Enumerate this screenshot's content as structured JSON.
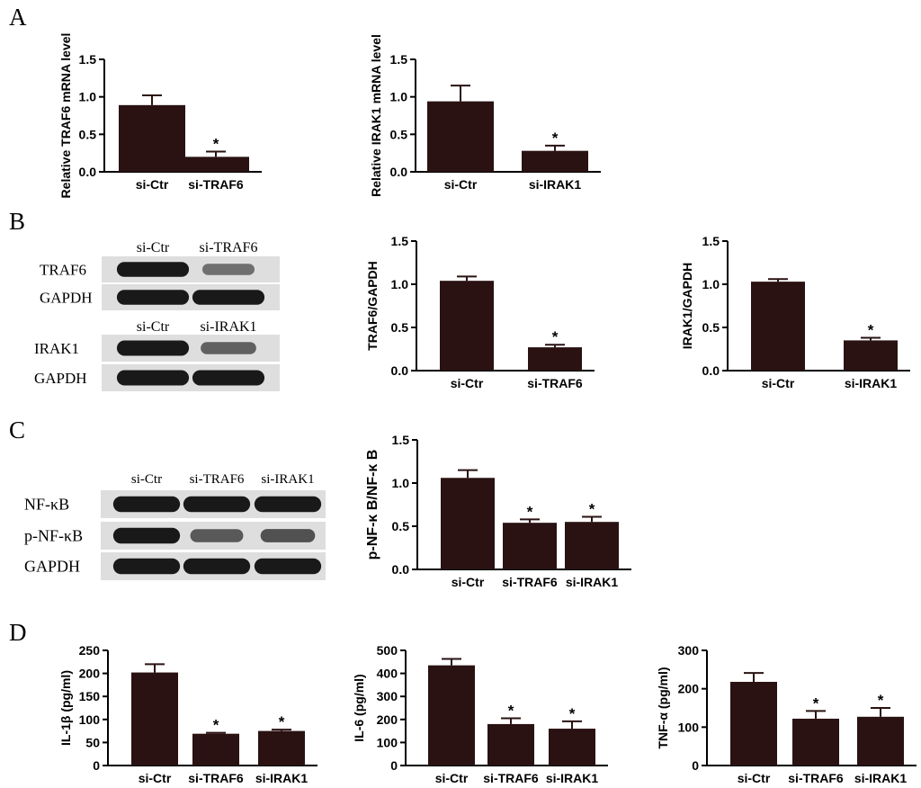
{
  "colors": {
    "bar": "#2a1212",
    "axis": "#000000",
    "blot_bg": "#dedede",
    "blot_band": "#111111"
  },
  "panel_letters": [
    "A",
    "B",
    "C",
    "D"
  ],
  "blots": {
    "traf6": {
      "lanes": [
        "si-Ctr",
        "si-TRAF6"
      ],
      "rows": [
        "TRAF6",
        "GAPDH"
      ],
      "intensity": [
        [
          0.95,
          0.35
        ],
        [
          0.95,
          0.95
        ]
      ]
    },
    "irak1": {
      "lanes": [
        "si-Ctr",
        "si-IRAK1"
      ],
      "rows": [
        "IRAK1",
        "GAPDH"
      ],
      "intensity": [
        [
          0.95,
          0.45
        ],
        [
          0.95,
          0.95
        ]
      ]
    },
    "nfkb": {
      "lanes": [
        "si-Ctr",
        "si-TRAF6",
        "si-IRAK1"
      ],
      "rows": [
        "NF-κB",
        "p-NF-κB",
        "GAPDH"
      ],
      "intensity": [
        [
          0.95,
          0.95,
          0.95
        ],
        [
          0.95,
          0.5,
          0.55
        ],
        [
          0.95,
          0.95,
          0.95
        ]
      ]
    }
  },
  "chart_data": [
    {
      "id": "a1",
      "type": "bar",
      "categories": [
        "si-Ctr",
        "si-TRAF6"
      ],
      "values": [
        0.89,
        0.2
      ],
      "errors": [
        0.13,
        0.07
      ],
      "significant": [
        false,
        true
      ],
      "ylabel": "Relative TRAF6 mRNA level",
      "ylim": [
        0,
        1.5
      ],
      "yticks": [
        "0.0",
        "0.5",
        "1.0",
        "1.5"
      ],
      "marker": "*"
    },
    {
      "id": "a2",
      "type": "bar",
      "categories": [
        "si-Ctr",
        "si-IRAK1"
      ],
      "values": [
        0.94,
        0.28
      ],
      "errors": [
        0.21,
        0.07
      ],
      "significant": [
        false,
        true
      ],
      "ylabel": "Relative IRAK1 mRNA level",
      "ylim": [
        0,
        1.5
      ],
      "yticks": [
        "0.0",
        "0.5",
        "1.0",
        "1.5"
      ],
      "marker": "*"
    },
    {
      "id": "b1",
      "type": "bar",
      "categories": [
        "si-Ctr",
        "si-TRAF6"
      ],
      "values": [
        1.04,
        0.27
      ],
      "errors": [
        0.05,
        0.03
      ],
      "significant": [
        false,
        true
      ],
      "ylabel": "TRAF6/GAPDH",
      "ylim": [
        0,
        1.5
      ],
      "yticks": [
        "0.0",
        "0.5",
        "1.0",
        "1.5"
      ],
      "marker": "*"
    },
    {
      "id": "b2",
      "type": "bar",
      "categories": [
        "si-Ctr",
        "si-IRAK1"
      ],
      "values": [
        1.03,
        0.35
      ],
      "errors": [
        0.03,
        0.03
      ],
      "significant": [
        false,
        true
      ],
      "ylabel": "IRAK1/GAPDH",
      "ylim": [
        0,
        1.5
      ],
      "yticks": [
        "0.0",
        "0.5",
        "1.0",
        "1.5"
      ],
      "marker": "*"
    },
    {
      "id": "c1",
      "type": "bar",
      "categories": [
        "si-Ctr",
        "si-TRAF6",
        "si-IRAK1"
      ],
      "values": [
        1.06,
        0.54,
        0.55
      ],
      "errors": [
        0.09,
        0.04,
        0.06
      ],
      "significant": [
        false,
        true,
        true
      ],
      "ylabel": "p-NF-κ B/NF-κ B",
      "ylim": [
        0,
        1.5
      ],
      "yticks": [
        "0.0",
        "0.5",
        "1.0",
        "1.5"
      ],
      "marker": "*"
    },
    {
      "id": "d1",
      "type": "bar",
      "categories": [
        "si-Ctr",
        "si-TRAF6",
        "si-IRAK1"
      ],
      "values": [
        202,
        69,
        75
      ],
      "errors": [
        18,
        2,
        3
      ],
      "significant": [
        false,
        true,
        true
      ],
      "ylabel": "IL-1β (pg/ml)",
      "ylim": [
        0,
        250
      ],
      "yticks": [
        "0",
        "50",
        "100",
        "150",
        "200",
        "250"
      ],
      "marker": "*"
    },
    {
      "id": "d2",
      "type": "bar",
      "categories": [
        "si-Ctr",
        "si-TRAF6",
        "si-IRAK1"
      ],
      "values": [
        435,
        180,
        160
      ],
      "errors": [
        28,
        25,
        32
      ],
      "significant": [
        false,
        true,
        true
      ],
      "ylabel": "IL-6 (pg/ml)",
      "ylim": [
        0,
        500
      ],
      "yticks": [
        "0",
        "100",
        "200",
        "300",
        "400",
        "500"
      ],
      "marker": "*"
    },
    {
      "id": "d3",
      "type": "bar",
      "categories": [
        "si-Ctr",
        "si-TRAF6",
        "si-IRAK1"
      ],
      "values": [
        218,
        122,
        127
      ],
      "errors": [
        23,
        20,
        23
      ],
      "significant": [
        false,
        true,
        true
      ],
      "ylabel": "TNF-α (pg/ml)",
      "ylim": [
        0,
        300
      ],
      "yticks": [
        "0",
        "100",
        "200",
        "300"
      ],
      "marker": "*"
    }
  ]
}
